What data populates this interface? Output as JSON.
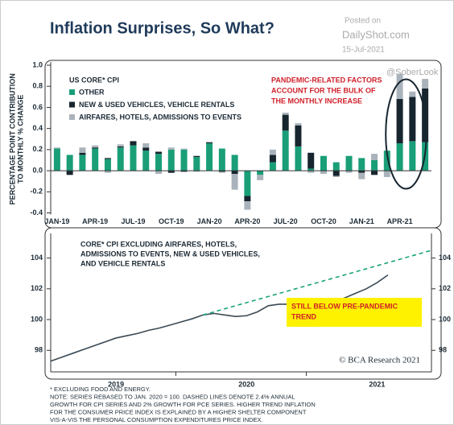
{
  "title": "Inflation Surprises, So What?",
  "watermark": {
    "posted": "Posted on",
    "site": "DailyShot.com",
    "date": "15-Jul-2021",
    "handle": "@SoberLook"
  },
  "chart_data": [
    {
      "type": "bar",
      "stacked": true,
      "ylabel": [
        "PERCENTAGE POINT CONTRIBUTION",
        "TO MONTHLY % CHANGE"
      ],
      "legend_title": "US CORE* CPI",
      "annotation": [
        "PANDEMIC-RELATED FACTORS",
        "ACCOUNT FOR THE BULK OF",
        "THE MONTHLY INCREASE"
      ],
      "categories": [
        "JAN-19",
        null,
        null,
        "APR-19",
        null,
        null,
        "JUL-19",
        null,
        null,
        "OCT-19",
        null,
        null,
        "JAN-20",
        null,
        null,
        "APR-20",
        null,
        null,
        "JUL-20",
        null,
        null,
        "OCT-20",
        null,
        null,
        "JAN-21",
        null,
        null,
        "APR-21",
        null,
        null
      ],
      "series": [
        {
          "name": "OTHER",
          "color": "#1a9e78",
          "values": [
            0.21,
            0.15,
            0.15,
            0.21,
            0.11,
            0.22,
            0.24,
            0.19,
            0.16,
            0.2,
            0.2,
            0.13,
            0.26,
            0.21,
            0.15,
            -0.24,
            -0.04,
            0.08,
            0.38,
            0.23,
            0.02,
            0.14,
            0.08,
            0.14,
            0.12,
            0.1,
            0.19,
            0.26,
            0.28,
            0.27
          ]
        },
        {
          "name": "NEW & USED VEHICLES, VEHICLE RENTALS",
          "color": "#17252f",
          "values": [
            0,
            -0.04,
            0.02,
            0.01,
            0.01,
            0.01,
            0.04,
            0.03,
            0.02,
            -0.02,
            -0.01,
            0.01,
            0.01,
            -0.01,
            -0.03,
            -0.05,
            0,
            0.07,
            0.15,
            0.2,
            0.15,
            0,
            -0.05,
            0,
            -0.02,
            -0.04,
            0,
            0.42,
            0.42,
            0.51
          ]
        },
        {
          "name": "AIRFARES, HOTELS, ADMISSIONS TO EVENTS",
          "color": "#aab3bb",
          "values": [
            0.01,
            0,
            0.05,
            0.02,
            -0.02,
            0.02,
            0,
            0.04,
            -0.03,
            0.02,
            0.01,
            -0.01,
            0,
            -0.01,
            -0.15,
            -0.08,
            -0.05,
            0.05,
            0.02,
            0.02,
            -0.02,
            -0.03,
            -0.01,
            -0.02,
            -0.06,
            0.06,
            -0.06,
            0.24,
            0.05,
            0.09
          ]
        }
      ],
      "ylim": [
        -0.4,
        1.0
      ],
      "yticks": [
        -0.4,
        -0.2,
        {
          "value": 0,
          "label": "0.0"
        },
        0.2,
        0.4,
        0.6,
        0.8,
        {
          "value": 1,
          "label": "1.0"
        }
      ]
    },
    {
      "type": "line",
      "annotation": [
        "CORE* CPI EXCLUDING AIRFARES, HOTELS,",
        "ADMISSIONS TO EVENTS, NEW & USED VEHICLES,",
        "AND VEHICLE RENTALS"
      ],
      "callout": [
        "STILL BELOW PRE-PANDEMIC",
        "TREND"
      ],
      "credit": "© BCA Research 2021",
      "categories": [
        null,
        null,
        null,
        null,
        null,
        null,
        "2019",
        null,
        null,
        null,
        null,
        null,
        null,
        null,
        null,
        null,
        null,
        null,
        "2020",
        null,
        null,
        null,
        null,
        null,
        null,
        null,
        null,
        null,
        null,
        null,
        "2021",
        null,
        null,
        null,
        null,
        null
      ],
      "series": [
        {
          "color": "#3b4a55",
          "style": "solid",
          "values": [
            97.3,
            97.55,
            97.8,
            98.05,
            98.3,
            98.55,
            98.8,
            98.95,
            99.1,
            99.3,
            99.45,
            99.65,
            99.85,
            100.05,
            100.3,
            100.4,
            100.3,
            100.2,
            100.25,
            100.5,
            100.9,
            101.0,
            101.0,
            101.0,
            101.0,
            101.1,
            101.2,
            101.4,
            101.7,
            102.0,
            102.4,
            102.9,
            null,
            null,
            null,
            null
          ]
        },
        {
          "color": "#1aa37a",
          "style": "dashed",
          "values": [
            null,
            null,
            null,
            null,
            null,
            null,
            null,
            null,
            null,
            null,
            null,
            null,
            null,
            null,
            100.3,
            100.5,
            100.7,
            100.9,
            101.1,
            101.3,
            101.5,
            101.7,
            101.9,
            102.1,
            102.3,
            102.5,
            102.7,
            102.9,
            103.1,
            103.3,
            103.5,
            103.7,
            103.9,
            104.1,
            104.3,
            104.5
          ]
        }
      ],
      "ylim": [
        96.6,
        105.6
      ],
      "yticks": [
        98,
        100,
        102,
        104
      ]
    }
  ],
  "footnotes": [
    "* EXCLUDING FOOD AND ENERGY.",
    "NOTE: SERIES REBASED TO JAN. 2020 = 100. DASHED LINES DENOTE 2.4% ANNUAL",
    "GROWTH FOR CPI SERIES AND 2% GROWTH FOR PCE SERIES. HIGHER TREND INFLATION",
    "FOR THE CONSUMER PRICE INDEX IS EXPLAINED BY A HIGHER SHELTER COMPONENT",
    "VIS-A-VIS THE PERSONAL CONSUMPTION EXPENDITURES PRICE INDEX."
  ]
}
